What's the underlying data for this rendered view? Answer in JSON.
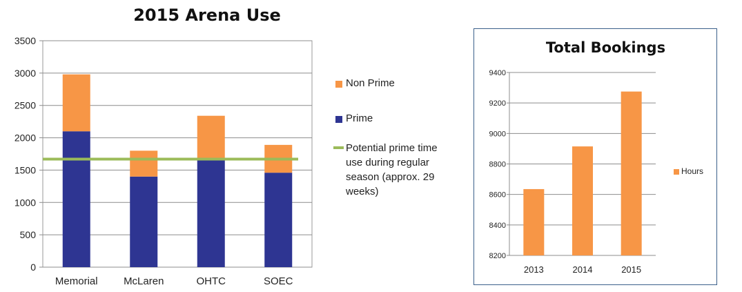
{
  "chart_data": [
    {
      "type": "bar",
      "stacked": true,
      "title": "2015 Arena Use",
      "categories": [
        "Memorial",
        "McLaren",
        "OHTC",
        "SOEC"
      ],
      "series": [
        {
          "name": "Prime",
          "values": [
            2100,
            1400,
            1650,
            1460
          ],
          "color": "#2e3592"
        },
        {
          "name": "Non Prime",
          "values": [
            880,
            400,
            690,
            430
          ],
          "color": "#f79646"
        }
      ],
      "reference_line": {
        "name": "Potential prime time use during regular season (approx. 29 weeks)",
        "value": 1670,
        "color": "#9bbb59"
      },
      "ylim": [
        0,
        3500
      ],
      "yticks": [
        "0",
        "500",
        "1000",
        "1500",
        "2000",
        "2500",
        "3000",
        "3500"
      ],
      "grid": true,
      "legend_position": "right"
    },
    {
      "type": "bar",
      "title": "Total Bookings",
      "categories": [
        "2013",
        "2014",
        "2015"
      ],
      "series": [
        {
          "name": "Hours",
          "values": [
            8635,
            8915,
            9275
          ],
          "color": "#f79646"
        }
      ],
      "ylim": [
        8200,
        9400
      ],
      "yticks": [
        "8200",
        "8400",
        "8600",
        "8800",
        "9000",
        "9200",
        "9400"
      ],
      "grid": true,
      "legend_position": "right"
    }
  ]
}
